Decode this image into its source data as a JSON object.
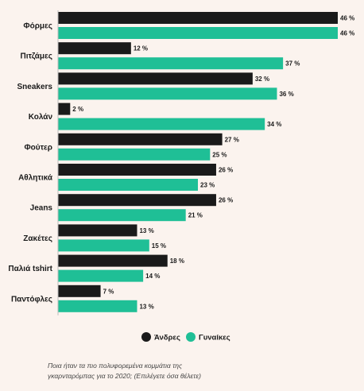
{
  "chart_data": {
    "type": "bar",
    "orientation": "horizontal",
    "categories": [
      "Φόρμες",
      "Πιτζάμες",
      "Sneakers",
      "Κολάν",
      "Φούτερ",
      "Αθλητικά",
      "Jeans",
      "Ζακέτες",
      "Παλιά tshirt",
      "Παντόφλες"
    ],
    "series": [
      {
        "name": "Άνδρες",
        "color": "#1a1a1a",
        "values": [
          46,
          12,
          32,
          2,
          27,
          26,
          26,
          13,
          18,
          7
        ]
      },
      {
        "name": "Γυναίκες",
        "color": "#1fbf96",
        "values": [
          46,
          37,
          36,
          34,
          25,
          23,
          21,
          15,
          14,
          13
        ]
      }
    ],
    "value_suffix": " %",
    "xlim": [
      0,
      46
    ],
    "legend_position": "bottom",
    "grid": false
  },
  "caption": {
    "line1": "Ποια ήταν τα πιο πολυφορεμένα κομμάτια της",
    "line2": "γκαρνταρόμπας για το 2020; (Επιλέγετε όσα θέλετε)"
  }
}
